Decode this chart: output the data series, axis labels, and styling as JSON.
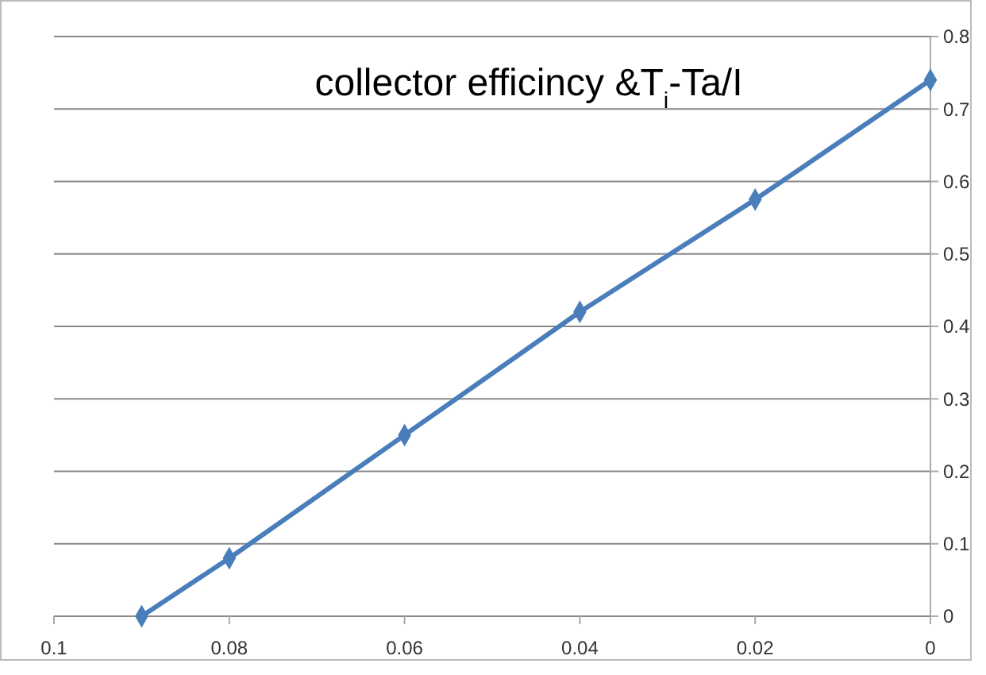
{
  "chart_data": {
    "type": "line",
    "title": "collector efficincy &T$_{i}$-Ta/I",
    "x": [
      0.09,
      0.08,
      0.06,
      0.04,
      0.02,
      0
    ],
    "series": [
      {
        "color": "#4a7ebb",
        "values": [
          0,
          0.08,
          0.25,
          0.42,
          0.575,
          0.74
        ]
      }
    ],
    "xlim": [
      0.1,
      0
    ],
    "xticks": [
      0.1,
      0.08,
      0.06,
      0.04,
      0.02,
      0
    ],
    "ylim": [
      0,
      0.8
    ],
    "yticks": [
      0,
      0.1,
      0.2,
      0.3,
      0.4,
      0.5,
      0.6,
      0.7,
      0.8
    ],
    "grid": "y",
    "marker": "diamond",
    "line_style": "solid"
  }
}
